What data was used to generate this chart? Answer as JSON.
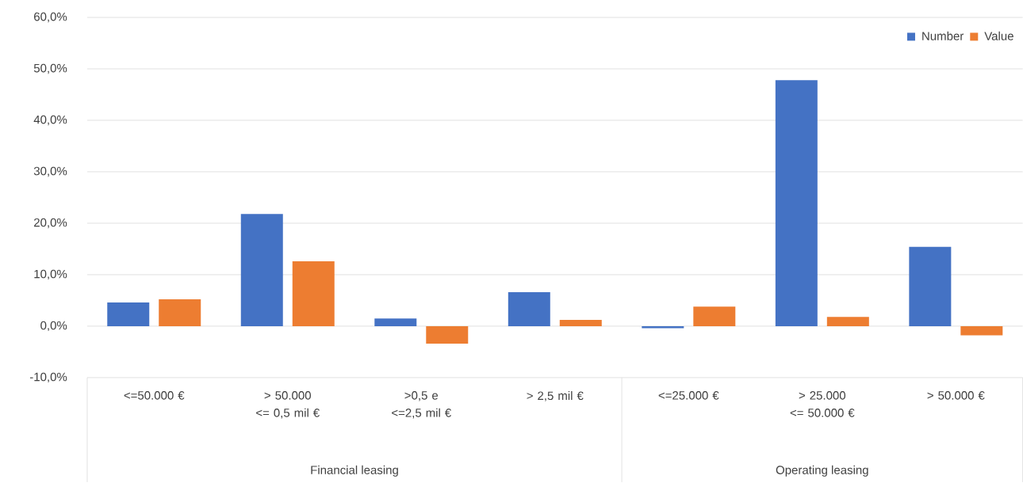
{
  "chart_data": {
    "type": "bar",
    "categories": [
      "<=50.000 €",
      "> 50.000  <= 0,5 mil  €",
      ">0,5 e <=2,5 mil  €",
      "> 2,5 mil  €",
      "<=25.000  €",
      "> 25.000 <= 50.000  €",
      "> 50.000  €"
    ],
    "series": [
      {
        "name": "Number",
        "color": "#4472c4",
        "values": [
          4.6,
          21.8,
          1.5,
          6.6,
          -0.4,
          47.8,
          15.4
        ]
      },
      {
        "name": "Value",
        "color": "#ed7d31",
        "values": [
          5.2,
          12.6,
          -3.4,
          1.2,
          3.8,
          1.8,
          -1.8
        ]
      }
    ],
    "annotations": [
      "Financial leasing",
      "Operating leasing"
    ],
    "ylim": [
      -10,
      60
    ],
    "yticks": [
      {
        "value": -10,
        "label": "-10,0%"
      },
      {
        "value": 0,
        "label": "0,0%"
      },
      {
        "value": 10,
        "label": "10,0%"
      },
      {
        "value": 20,
        "label": "20,0%"
      },
      {
        "value": 30,
        "label": "30,0%"
      },
      {
        "value": 40,
        "label": "40,0%"
      },
      {
        "value": 50,
        "label": "50,0%"
      },
      {
        "value": 60,
        "label": "60,0%"
      }
    ],
    "grid": "y",
    "legend": "top right"
  }
}
